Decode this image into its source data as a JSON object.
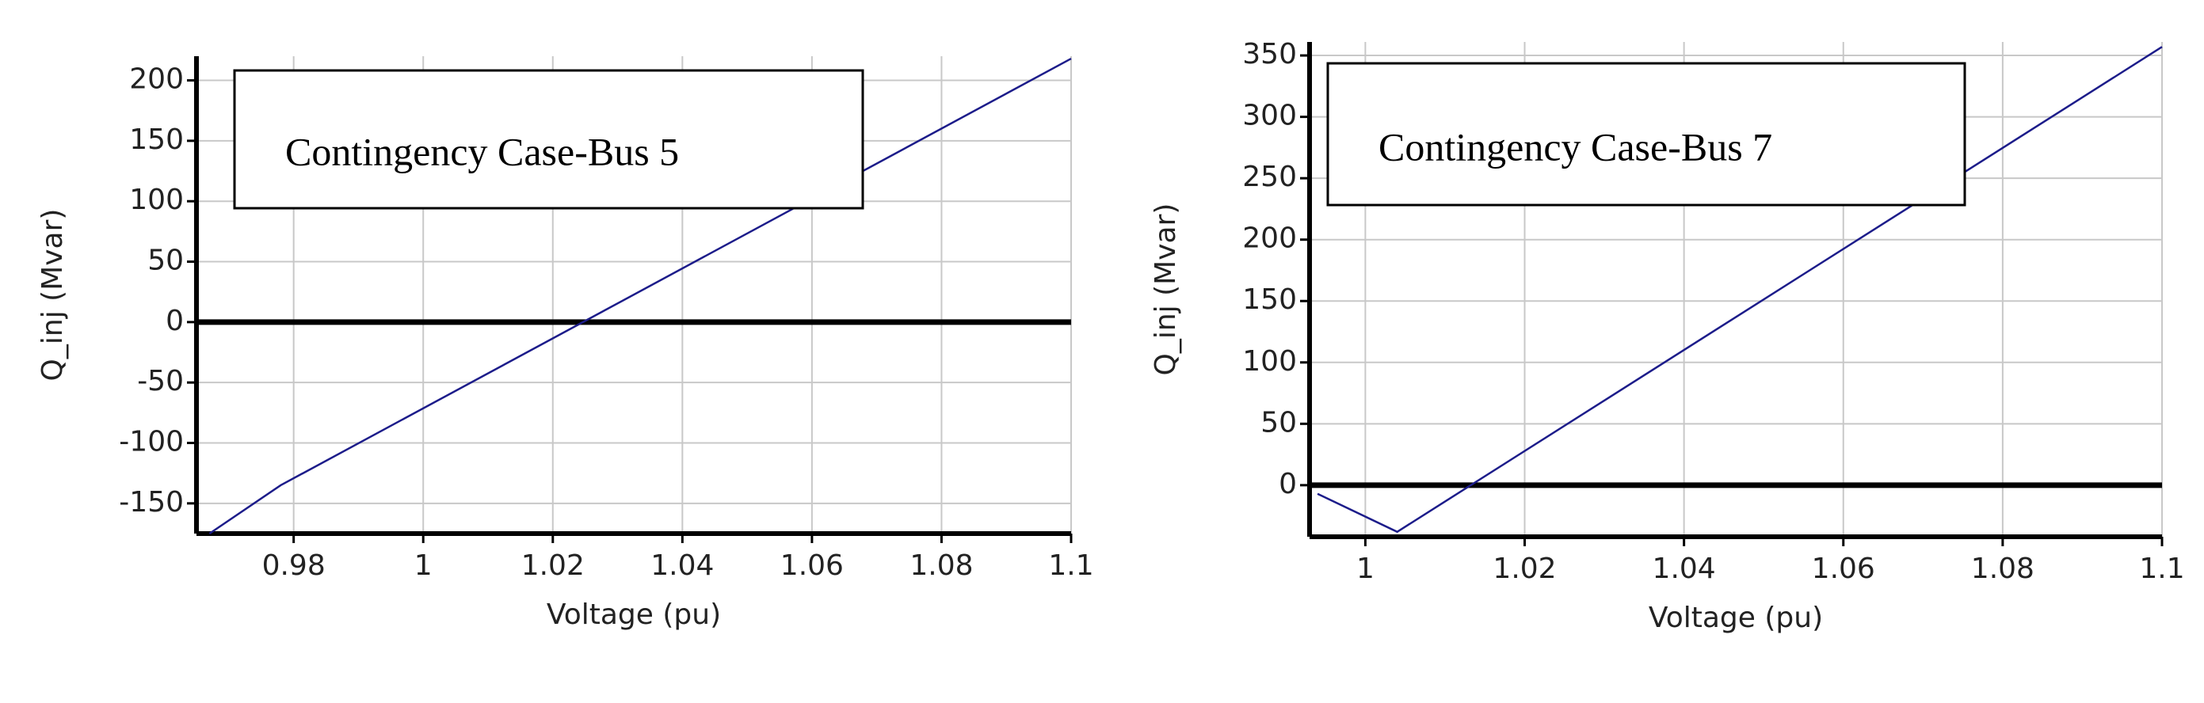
{
  "chart_data": [
    {
      "type": "line",
      "xlabel": "Voltage (pu)",
      "ylabel": "Q_inj (Mvar)",
      "annotation": "Contingency Case-Bus 5",
      "x": [
        0.967,
        0.978,
        1.1
      ],
      "values": [
        -175,
        -135,
        218
      ],
      "color": "#1c1c8a",
      "xlim": [
        0.965,
        1.1
      ],
      "xticks": [
        0.98,
        1,
        1.02,
        1.04,
        1.06,
        1.08,
        1.1
      ],
      "ylim": [
        -175,
        220
      ],
      "yticks": [
        -150,
        -100,
        -50,
        0,
        50,
        100,
        150,
        200
      ],
      "reference_line": 0,
      "reference_color": "#000000",
      "grid": true
    },
    {
      "type": "line",
      "xlabel": "Voltage (pu)",
      "ylabel": "Q_inj (Mvar)",
      "annotation": "Contingency Case-Bus 7",
      "x": [
        0.994,
        1.004,
        1.1
      ],
      "values": [
        -7,
        -38,
        357
      ],
      "color": "#1c1c8a",
      "xlim": [
        0.993,
        1.1
      ],
      "xticks": [
        1,
        1.02,
        1.04,
        1.06,
        1.08,
        1.1
      ],
      "ylim": [
        -42,
        361
      ],
      "yticks": [
        0,
        50,
        100,
        150,
        200,
        250,
        300,
        350
      ],
      "reference_line": 0,
      "reference_color": "#000000",
      "grid": true
    }
  ]
}
